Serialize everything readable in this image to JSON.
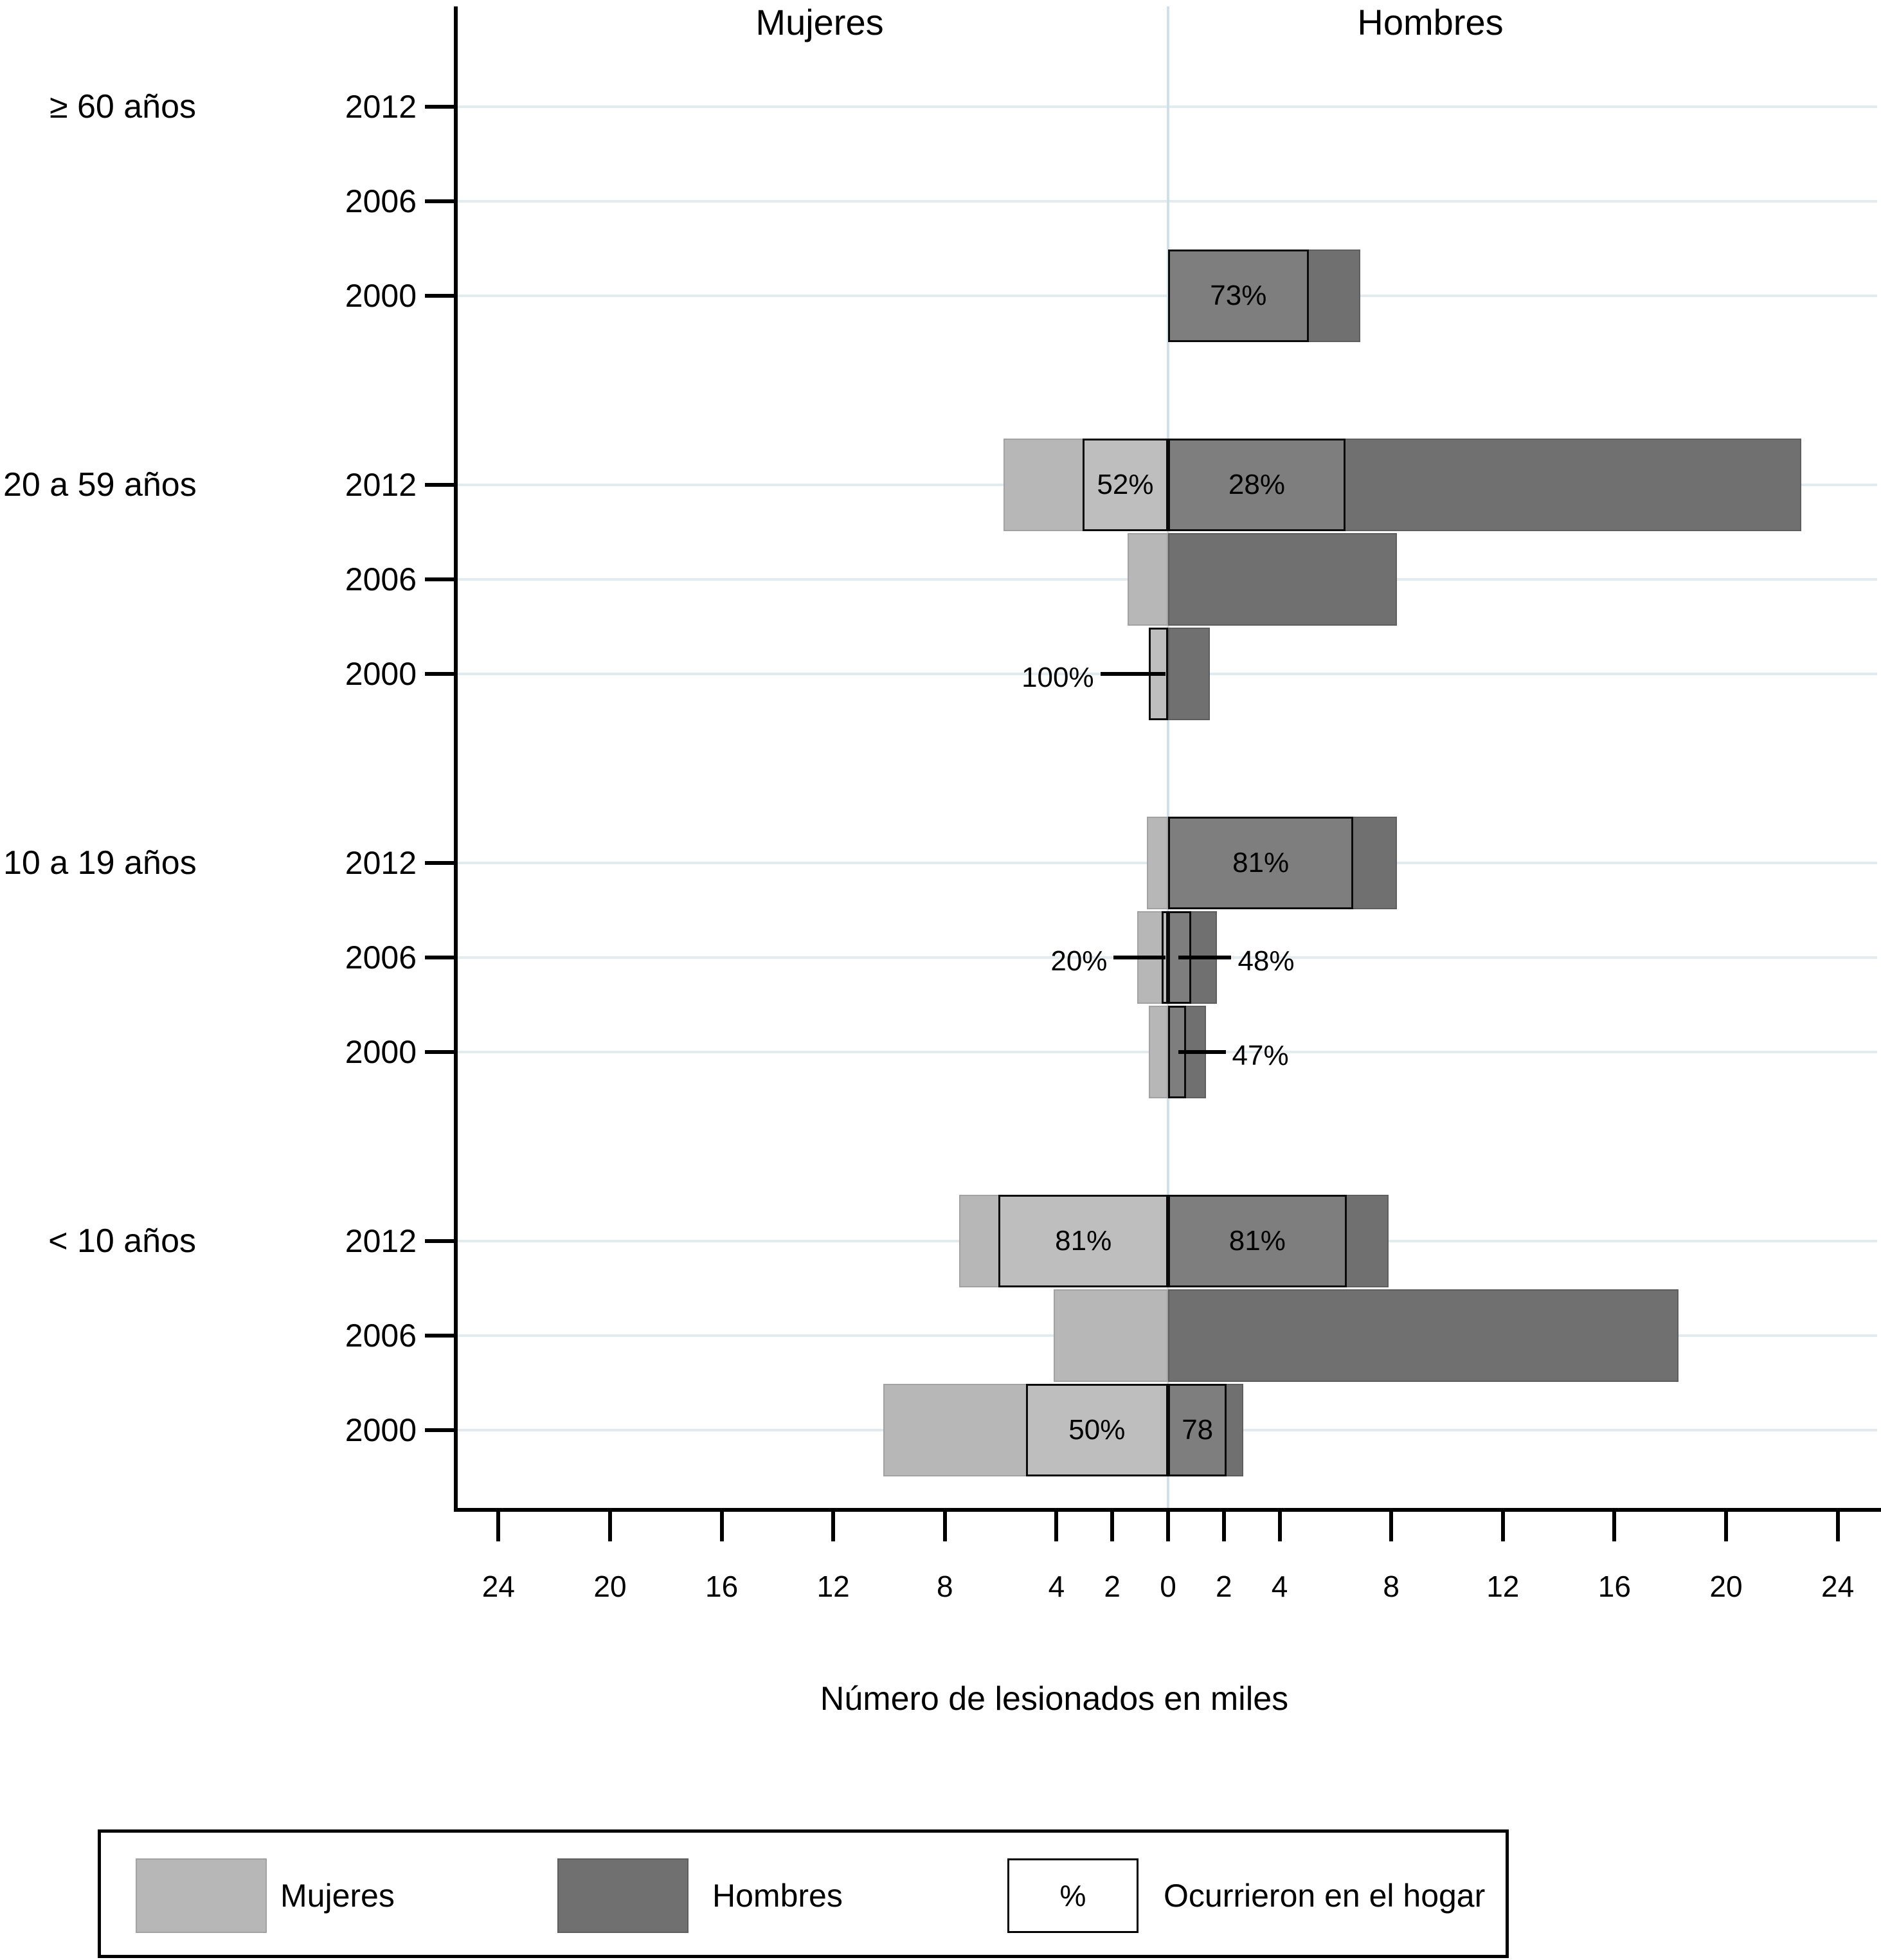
{
  "figure": {
    "header_left": "Mujeres",
    "header_right": "Hombres",
    "xlabel": "Número de lesionados en miles",
    "colors": {
      "mujeres_fill": "#b7b7b7",
      "hombres_fill": "#707070",
      "inner_outline": "#0a0a0a",
      "gridline": "#e2ecf0",
      "zero_line": "#cfe0e8",
      "axis": "#000000"
    }
  },
  "chart_data": {
    "type": "bar",
    "variant": "bidirectional-pyramid",
    "title": "",
    "xlabel": "Número de lesionados en miles",
    "x_tick_labels": [
      "24",
      "20",
      "16",
      "12",
      "8",
      "4",
      "2",
      "0",
      "2",
      "4",
      "8",
      "12",
      "16",
      "20",
      "24"
    ],
    "x_tick_values": [
      -24,
      -20,
      -16,
      -12,
      -8,
      -4,
      -2,
      0,
      2,
      4,
      8,
      12,
      16,
      20,
      24
    ],
    "xlim_abs": 24,
    "grid": true,
    "series_names": [
      "Mujeres",
      "Hombres"
    ],
    "inner_box_meaning": "Ocurrieron en el hogar (%)",
    "groups": [
      {
        "label": "≥ 60  años",
        "rows": [
          {
            "year": "2012",
            "mujeres": null,
            "hombres": null
          },
          {
            "year": "2006",
            "mujeres": null,
            "hombres": null
          },
          {
            "year": "2000",
            "mujeres": null,
            "hombres": {
              "total": 6.9,
              "home_pct": 73,
              "pct_label": "73%",
              "label_style": "inside"
            }
          }
        ]
      },
      {
        "label": "20 a 59 años",
        "rows": [
          {
            "year": "2012",
            "mujeres": {
              "total": 5.9,
              "home_pct": 52,
              "pct_label": "52%",
              "label_style": "inside"
            },
            "hombres": {
              "total": 22.7,
              "home_pct": 28,
              "pct_label": "28%",
              "label_style": "inside"
            }
          },
          {
            "year": "2006",
            "mujeres": {
              "total": 1.45
            },
            "hombres": {
              "total": 8.2
            }
          },
          {
            "year": "2000",
            "mujeres": {
              "total": 0.7,
              "home_pct": 100,
              "pct_label": "100%",
              "label_style": "callout-left"
            },
            "hombres": {
              "total": 1.5
            }
          }
        ]
      },
      {
        "label": "10 a 19 años",
        "rows": [
          {
            "year": "2012",
            "mujeres": {
              "total": 0.75
            },
            "hombres": {
              "total": 8.2,
              "home_pct": 81,
              "pct_label": "81%",
              "label_style": "inside"
            }
          },
          {
            "year": "2006",
            "mujeres": {
              "total": 1.1,
              "home_pct": 20,
              "pct_label": "20%",
              "label_style": "callout-left"
            },
            "hombres": {
              "total": 1.75,
              "home_pct": 48,
              "pct_label": "48%",
              "label_style": "callout-right"
            }
          },
          {
            "year": "2000",
            "mujeres": {
              "total": 0.7
            },
            "hombres": {
              "total": 1.35,
              "home_pct": 47,
              "pct_label": "47%",
              "label_style": "callout-right"
            }
          }
        ]
      },
      {
        "label": "< 10 años",
        "rows": [
          {
            "year": "2012",
            "mujeres": {
              "total": 7.5,
              "home_pct": 81,
              "pct_label": "81%",
              "label_style": "inside"
            },
            "hombres": {
              "total": 7.9,
              "home_pct": 81,
              "pct_label": "81%",
              "label_style": "inside"
            }
          },
          {
            "year": "2006",
            "mujeres": {
              "total": 4.1
            },
            "hombres": {
              "total": 18.3
            }
          },
          {
            "year": "2000",
            "mujeres": {
              "total": 10.2,
              "home_pct": 50,
              "pct_label": "50%",
              "label_style": "inside"
            },
            "hombres": {
              "total": 2.7,
              "home_pct": 78,
              "pct_label": "78",
              "label_style": "inside"
            }
          }
        ]
      }
    ]
  },
  "legend": {
    "items": [
      {
        "swatch": "mujeres",
        "swatch_text": "",
        "label": "Mujeres"
      },
      {
        "swatch": "hombres",
        "swatch_text": "",
        "label": "Hombres"
      },
      {
        "swatch": "percent",
        "swatch_text": "%",
        "label": "Ocurrieron en el hogar"
      }
    ]
  }
}
